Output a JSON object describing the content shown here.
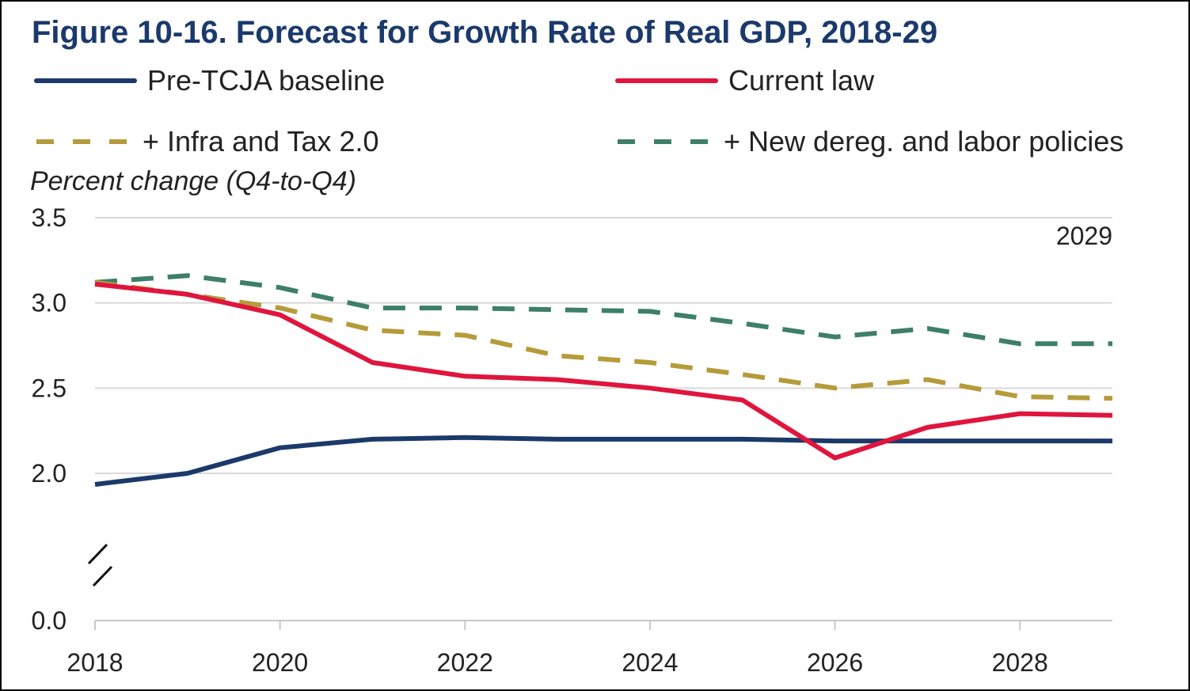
{
  "chart_data": {
    "type": "line",
    "title": "Figure 10-16. Forecast for Growth Rate of Real GDP, 2018-29",
    "ylabel": "Percent change (Q4-to-Q4)",
    "xlabel": "",
    "annotation": "2029",
    "x": [
      2018,
      2019,
      2020,
      2021,
      2022,
      2023,
      2024,
      2025,
      2026,
      2027,
      2028,
      2029
    ],
    "xlim": [
      2018,
      2029
    ],
    "x_ticks": [
      "2018",
      "2020",
      "2022",
      "2024",
      "2026",
      "2028"
    ],
    "y_ticks": [
      "0.0",
      "2.0",
      "2.5",
      "3.0",
      "3.5"
    ],
    "ylim": [
      0.0,
      3.5
    ],
    "axis_break": [
      0.0,
      2.0
    ],
    "grid": true,
    "legend_position": "top",
    "series": [
      {
        "name": "Pre-TCJA baseline",
        "style": "solid",
        "color": "#1b3a6b",
        "values": [
          1.85,
          2.0,
          2.15,
          2.2,
          2.21,
          2.2,
          2.2,
          2.2,
          2.19,
          2.19,
          2.19,
          2.19
        ]
      },
      {
        "name": "Current law",
        "style": "solid",
        "color": "#e0153d",
        "values": [
          3.11,
          3.05,
          2.93,
          2.65,
          2.57,
          2.55,
          2.5,
          2.43,
          2.09,
          2.27,
          2.35,
          2.34
        ]
      },
      {
        "name": "+ Infra and Tax 2.0",
        "style": "dashed",
        "color": "#b59b3a",
        "values": [
          3.12,
          3.05,
          2.97,
          2.84,
          2.81,
          2.69,
          2.65,
          2.58,
          2.5,
          2.55,
          2.45,
          2.44
        ]
      },
      {
        "name": "+ New dereg. and labor policies",
        "style": "dashed",
        "color": "#3d7f6a",
        "values": [
          3.12,
          3.16,
          3.09,
          2.97,
          2.97,
          2.96,
          2.95,
          2.88,
          2.8,
          2.85,
          2.76,
          2.76
        ]
      }
    ]
  }
}
